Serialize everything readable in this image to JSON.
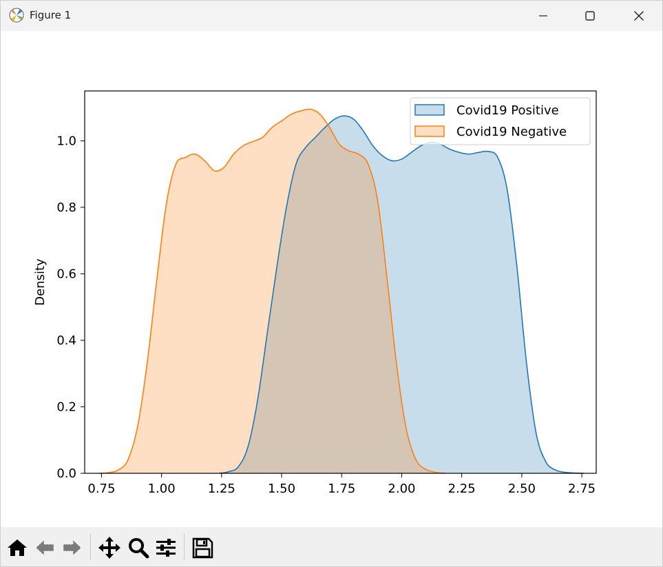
{
  "window": {
    "title": "Figure 1"
  },
  "toolbar": {
    "items": [
      {
        "icon": "home-icon"
      },
      {
        "icon": "back-arrow-icon"
      },
      {
        "icon": "forward-arrow-icon"
      },
      {
        "icon": "pan-move-icon"
      },
      {
        "icon": "zoom-magnifier-icon"
      },
      {
        "icon": "configure-subplots-icon"
      },
      {
        "icon": "save-disk-icon"
      }
    ]
  },
  "chart_data": {
    "type": "area",
    "title": "",
    "xlabel": "",
    "ylabel": "Density",
    "xlim": [
      0.68,
      2.81
    ],
    "ylim": [
      0.0,
      1.15
    ],
    "xticks": [
      0.75,
      1.0,
      1.25,
      1.5,
      1.75,
      2.0,
      2.25,
      2.5,
      2.75
    ],
    "xtick_labels": [
      "0.75",
      "1.00",
      "1.25",
      "1.50",
      "1.75",
      "2.00",
      "2.25",
      "2.50",
      "2.75"
    ],
    "yticks": [
      0.0,
      0.2,
      0.4,
      0.6,
      0.8,
      1.0
    ],
    "ytick_labels": [
      "0.0",
      "0.2",
      "0.4",
      "0.6",
      "0.8",
      "1.0"
    ],
    "grid": false,
    "legend_position": "top-right",
    "series": [
      {
        "name": "Covid19 Positive",
        "color": "#1f77b4",
        "x": [
          1.24,
          1.28,
          1.32,
          1.36,
          1.4,
          1.44,
          1.48,
          1.52,
          1.56,
          1.6,
          1.64,
          1.68,
          1.72,
          1.76,
          1.8,
          1.84,
          1.88,
          1.92,
          1.96,
          2.0,
          2.04,
          2.08,
          2.12,
          2.16,
          2.2,
          2.24,
          2.28,
          2.32,
          2.36,
          2.4,
          2.44,
          2.48,
          2.52,
          2.56,
          2.6,
          2.64,
          2.68,
          2.72,
          2.76
        ],
        "y": [
          0.0,
          0.005,
          0.02,
          0.08,
          0.22,
          0.42,
          0.62,
          0.8,
          0.93,
          0.98,
          1.01,
          1.04,
          1.065,
          1.075,
          1.065,
          1.03,
          0.985,
          0.955,
          0.94,
          0.945,
          0.965,
          0.985,
          0.995,
          0.99,
          0.975,
          0.965,
          0.96,
          0.965,
          0.968,
          0.95,
          0.85,
          0.62,
          0.33,
          0.12,
          0.035,
          0.01,
          0.003,
          0.001,
          0.0
        ]
      },
      {
        "name": "Covid19 Negative",
        "color": "#ff7f0e",
        "x": [
          0.74,
          0.78,
          0.82,
          0.86,
          0.9,
          0.94,
          0.98,
          1.02,
          1.06,
          1.1,
          1.14,
          1.18,
          1.22,
          1.26,
          1.3,
          1.34,
          1.38,
          1.42,
          1.46,
          1.5,
          1.54,
          1.58,
          1.62,
          1.66,
          1.7,
          1.74,
          1.78,
          1.82,
          1.86,
          1.9,
          1.94,
          1.98,
          2.02,
          2.06,
          2.1,
          2.14,
          2.18
        ],
        "y": [
          0.0,
          0.002,
          0.01,
          0.04,
          0.14,
          0.33,
          0.58,
          0.81,
          0.93,
          0.95,
          0.96,
          0.94,
          0.91,
          0.92,
          0.96,
          0.985,
          0.998,
          1.01,
          1.04,
          1.06,
          1.08,
          1.09,
          1.095,
          1.08,
          1.04,
          0.99,
          0.97,
          0.96,
          0.93,
          0.82,
          0.58,
          0.32,
          0.13,
          0.04,
          0.012,
          0.003,
          0.0
        ]
      }
    ]
  }
}
